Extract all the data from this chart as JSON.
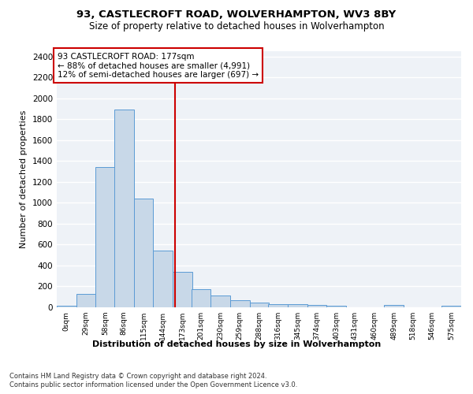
{
  "title1": "93, CASTLECROFT ROAD, WOLVERHAMPTON, WV3 8BY",
  "title2": "Size of property relative to detached houses in Wolverhampton",
  "xlabel": "Distribution of detached houses by size in Wolverhampton",
  "ylabel": "Number of detached properties",
  "footer1": "Contains HM Land Registry data © Crown copyright and database right 2024.",
  "footer2": "Contains public sector information licensed under the Open Government Licence v3.0.",
  "property_size": 177,
  "property_label": "93 CASTLECROFT ROAD: 177sqm",
  "annotation_line1": "← 88% of detached houses are smaller (4,991)",
  "annotation_line2": "12% of semi-detached houses are larger (697) →",
  "bar_color": "#c8d8e8",
  "bar_edge_color": "#5b9bd5",
  "vline_color": "#cc0000",
  "annotation_box_color": "#cc0000",
  "bin_labels": [
    "0sqm",
    "29sqm",
    "58sqm",
    "86sqm",
    "115sqm",
    "144sqm",
    "173sqm",
    "201sqm",
    "230sqm",
    "259sqm",
    "288sqm",
    "316sqm",
    "345sqm",
    "374sqm",
    "403sqm",
    "431sqm",
    "460sqm",
    "489sqm",
    "518sqm",
    "546sqm",
    "575sqm"
  ],
  "bin_edges": [
    0,
    29,
    58,
    86,
    115,
    144,
    173,
    201,
    230,
    259,
    288,
    316,
    345,
    374,
    403,
    431,
    460,
    489,
    518,
    546,
    575
  ],
  "bar_heights": [
    15,
    125,
    1340,
    1890,
    1040,
    545,
    340,
    170,
    115,
    65,
    45,
    32,
    28,
    22,
    15,
    0,
    0,
    22,
    0,
    0,
    15
  ],
  "ylim": [
    0,
    2450
  ],
  "yticks": [
    0,
    200,
    400,
    600,
    800,
    1000,
    1200,
    1400,
    1600,
    1800,
    2000,
    2200,
    2400
  ],
  "bg_color": "#eef2f7",
  "grid_color": "#ffffff"
}
